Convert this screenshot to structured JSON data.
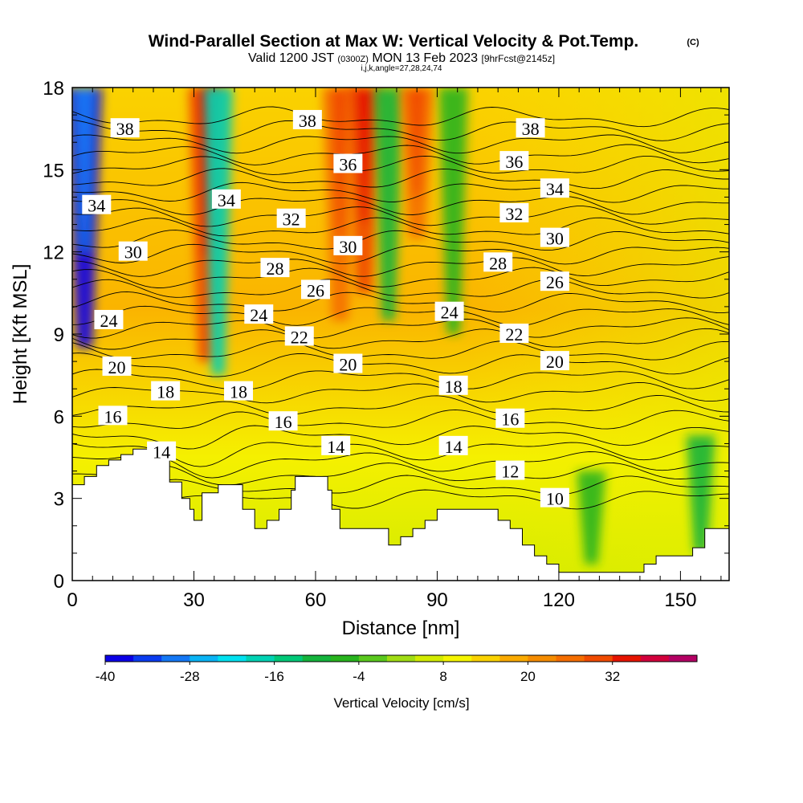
{
  "header": {
    "title": "Wind-Parallel Section at Max W: Vertical Velocity & Pot.Temp.",
    "title_tag": "(C)",
    "valid_prefix": "Valid 1200 JST",
    "valid_small": "(0300Z)",
    "valid_date": "MON 13 Feb 2023",
    "forecast_tag": "[9hrFcst@2145z]",
    "indices": "i,j,k,angle=27,28,24,74"
  },
  "chart_data": {
    "type": "heatmap",
    "xlabel": "Distance [nm]",
    "ylabel": "Height [Kft MSL]",
    "xlim": [
      0,
      162
    ],
    "ylim": [
      0,
      18
    ],
    "xticks": [
      0,
      30,
      60,
      90,
      120,
      150
    ],
    "yticks": [
      0,
      3,
      6,
      9,
      12,
      15,
      18
    ],
    "colorbar": {
      "label": "Vertical Velocity [cm/s]",
      "min": -40,
      "max": 44,
      "step": 4,
      "tick_values": [
        -40,
        -28,
        -16,
        -4,
        8,
        20,
        32
      ],
      "tick_labels": [
        "-40",
        "-28",
        "-16",
        "-4",
        "8",
        "20",
        "32"
      ],
      "colors": [
        "#0b00e6",
        "#0a3cf0",
        "#1478f5",
        "#0ab4f5",
        "#00e1f0",
        "#00d2b4",
        "#00c878",
        "#14b43c",
        "#28b41e",
        "#5ac81e",
        "#a0dc14",
        "#d2eb00",
        "#f5f500",
        "#fad200",
        "#faaa00",
        "#f58c00",
        "#f56e00",
        "#f04b00",
        "#e61400",
        "#d2003c",
        "#b40064",
        "#960082",
        "#5a0096"
      ]
    },
    "terrain_profile": {
      "x": [
        0,
        3,
        3,
        6,
        6,
        9,
        9,
        12,
        12,
        15,
        15,
        21,
        21,
        24,
        24,
        27,
        27,
        29,
        29,
        30,
        30,
        32,
        32,
        36,
        36,
        42,
        42,
        45,
        45,
        48,
        48,
        51,
        51,
        54,
        54,
        55,
        55,
        63,
        63,
        64,
        64,
        66,
        66,
        72,
        72,
        75,
        75,
        78,
        78,
        81,
        81,
        84,
        84,
        87,
        87,
        90,
        90,
        96,
        96,
        105,
        105,
        108,
        108,
        111,
        111,
        114,
        114,
        117,
        117,
        120,
        120,
        123,
        123,
        126,
        126,
        132,
        132,
        135,
        135,
        141,
        141,
        144,
        144,
        150,
        150,
        153,
        153,
        156,
        156,
        162
      ],
      "h": [
        3.5,
        3.5,
        3.8,
        3.8,
        4.2,
        4.2,
        4.4,
        4.4,
        4.6,
        4.6,
        4.8,
        4.8,
        4.5,
        4.5,
        3.6,
        3.6,
        3.0,
        3.0,
        2.6,
        2.6,
        2.2,
        2.2,
        3.2,
        3.2,
        3.5,
        3.5,
        2.6,
        2.6,
        1.9,
        1.9,
        2.2,
        2.2,
        2.6,
        2.6,
        3.3,
        3.3,
        3.8,
        3.8,
        3.3,
        3.3,
        2.6,
        2.6,
        1.9,
        1.9,
        1.9,
        1.9,
        1.9,
        1.9,
        1.3,
        1.3,
        1.6,
        1.6,
        1.9,
        1.9,
        2.2,
        2.2,
        2.6,
        2.6,
        2.6,
        2.6,
        2.2,
        2.2,
        1.9,
        1.9,
        1.3,
        1.3,
        0.9,
        0.9,
        0.6,
        0.6,
        0.3,
        0.3,
        0.3,
        0.3,
        0.3,
        0.3,
        0.3,
        0.3,
        0.3,
        0.3,
        0.6,
        0.6,
        0.9,
        0.9,
        0.9,
        0.9,
        1.2,
        1.2,
        1.9,
        1.9
      ]
    },
    "updraft_bands": [
      {
        "x": 3,
        "h_bottom": 8.5,
        "h_top": 18,
        "value": -38
      },
      {
        "x": 33,
        "h_bottom": 8.0,
        "h_top": 18,
        "value": 30
      },
      {
        "x": 36,
        "h_bottom": 7.5,
        "h_top": 18,
        "value": -18
      },
      {
        "x": 66,
        "h_bottom": 9.5,
        "h_top": 18,
        "value": 26
      },
      {
        "x": 72,
        "h_bottom": 10.5,
        "h_top": 18,
        "value": 30
      },
      {
        "x": 78,
        "h_bottom": 9.5,
        "h_top": 18,
        "value": -10
      },
      {
        "x": 85,
        "h_bottom": 12.5,
        "h_top": 18,
        "value": 26
      },
      {
        "x": 94,
        "h_bottom": 9.0,
        "h_top": 18,
        "value": -6
      },
      {
        "x": 128,
        "h_bottom": 0.6,
        "h_top": 4.0,
        "value": -8
      },
      {
        "x": 155,
        "h_bottom": 1.0,
        "h_top": 5.3,
        "value": -10
      }
    ],
    "isentropes": {
      "levels": [
        10,
        11,
        12,
        13,
        14,
        15,
        16,
        17,
        18,
        19,
        20,
        21,
        22,
        23,
        24,
        25,
        26,
        27,
        28,
        29,
        30,
        31,
        32,
        33,
        34,
        35,
        36,
        37,
        38,
        39,
        40
      ],
      "labels": [
        {
          "text": "38",
          "x": 13,
          "h": 16.5
        },
        {
          "text": "38",
          "x": 58,
          "h": 16.8
        },
        {
          "text": "38",
          "x": 113,
          "h": 16.5
        },
        {
          "text": "36",
          "x": 68,
          "h": 15.2
        },
        {
          "text": "36",
          "x": 109,
          "h": 15.3
        },
        {
          "text": "34",
          "x": 6,
          "h": 13.7
        },
        {
          "text": "34",
          "x": 38,
          "h": 13.9
        },
        {
          "text": "34",
          "x": 119,
          "h": 14.3
        },
        {
          "text": "32",
          "x": 54,
          "h": 13.2
        },
        {
          "text": "32",
          "x": 109,
          "h": 13.4
        },
        {
          "text": "30",
          "x": 15,
          "h": 12.0
        },
        {
          "text": "30",
          "x": 68,
          "h": 12.2
        },
        {
          "text": "30",
          "x": 119,
          "h": 12.5
        },
        {
          "text": "28",
          "x": 50,
          "h": 11.4
        },
        {
          "text": "28",
          "x": 105,
          "h": 11.6
        },
        {
          "text": "26",
          "x": 60,
          "h": 10.6
        },
        {
          "text": "26",
          "x": 119,
          "h": 10.9
        },
        {
          "text": "24",
          "x": 9,
          "h": 9.5
        },
        {
          "text": "24",
          "x": 46,
          "h": 9.7
        },
        {
          "text": "24",
          "x": 93,
          "h": 9.8
        },
        {
          "text": "22",
          "x": 56,
          "h": 8.9
        },
        {
          "text": "22",
          "x": 109,
          "h": 9.0
        },
        {
          "text": "20",
          "x": 11,
          "h": 7.8
        },
        {
          "text": "20",
          "x": 68,
          "h": 7.9
        },
        {
          "text": "20",
          "x": 119,
          "h": 8.0
        },
        {
          "text": "18",
          "x": 23,
          "h": 6.9
        },
        {
          "text": "18",
          "x": 41,
          "h": 6.9
        },
        {
          "text": "18",
          "x": 94,
          "h": 7.1
        },
        {
          "text": "16",
          "x": 10,
          "h": 6.0
        },
        {
          "text": "16",
          "x": 52,
          "h": 5.8
        },
        {
          "text": "16",
          "x": 108,
          "h": 5.9
        },
        {
          "text": "14",
          "x": 22,
          "h": 4.7
        },
        {
          "text": "14",
          "x": 65,
          "h": 4.9
        },
        {
          "text": "14",
          "x": 94,
          "h": 4.9
        },
        {
          "text": "12",
          "x": 108,
          "h": 4.0
        },
        {
          "text": "10",
          "x": 119,
          "h": 3.0
        }
      ]
    }
  }
}
